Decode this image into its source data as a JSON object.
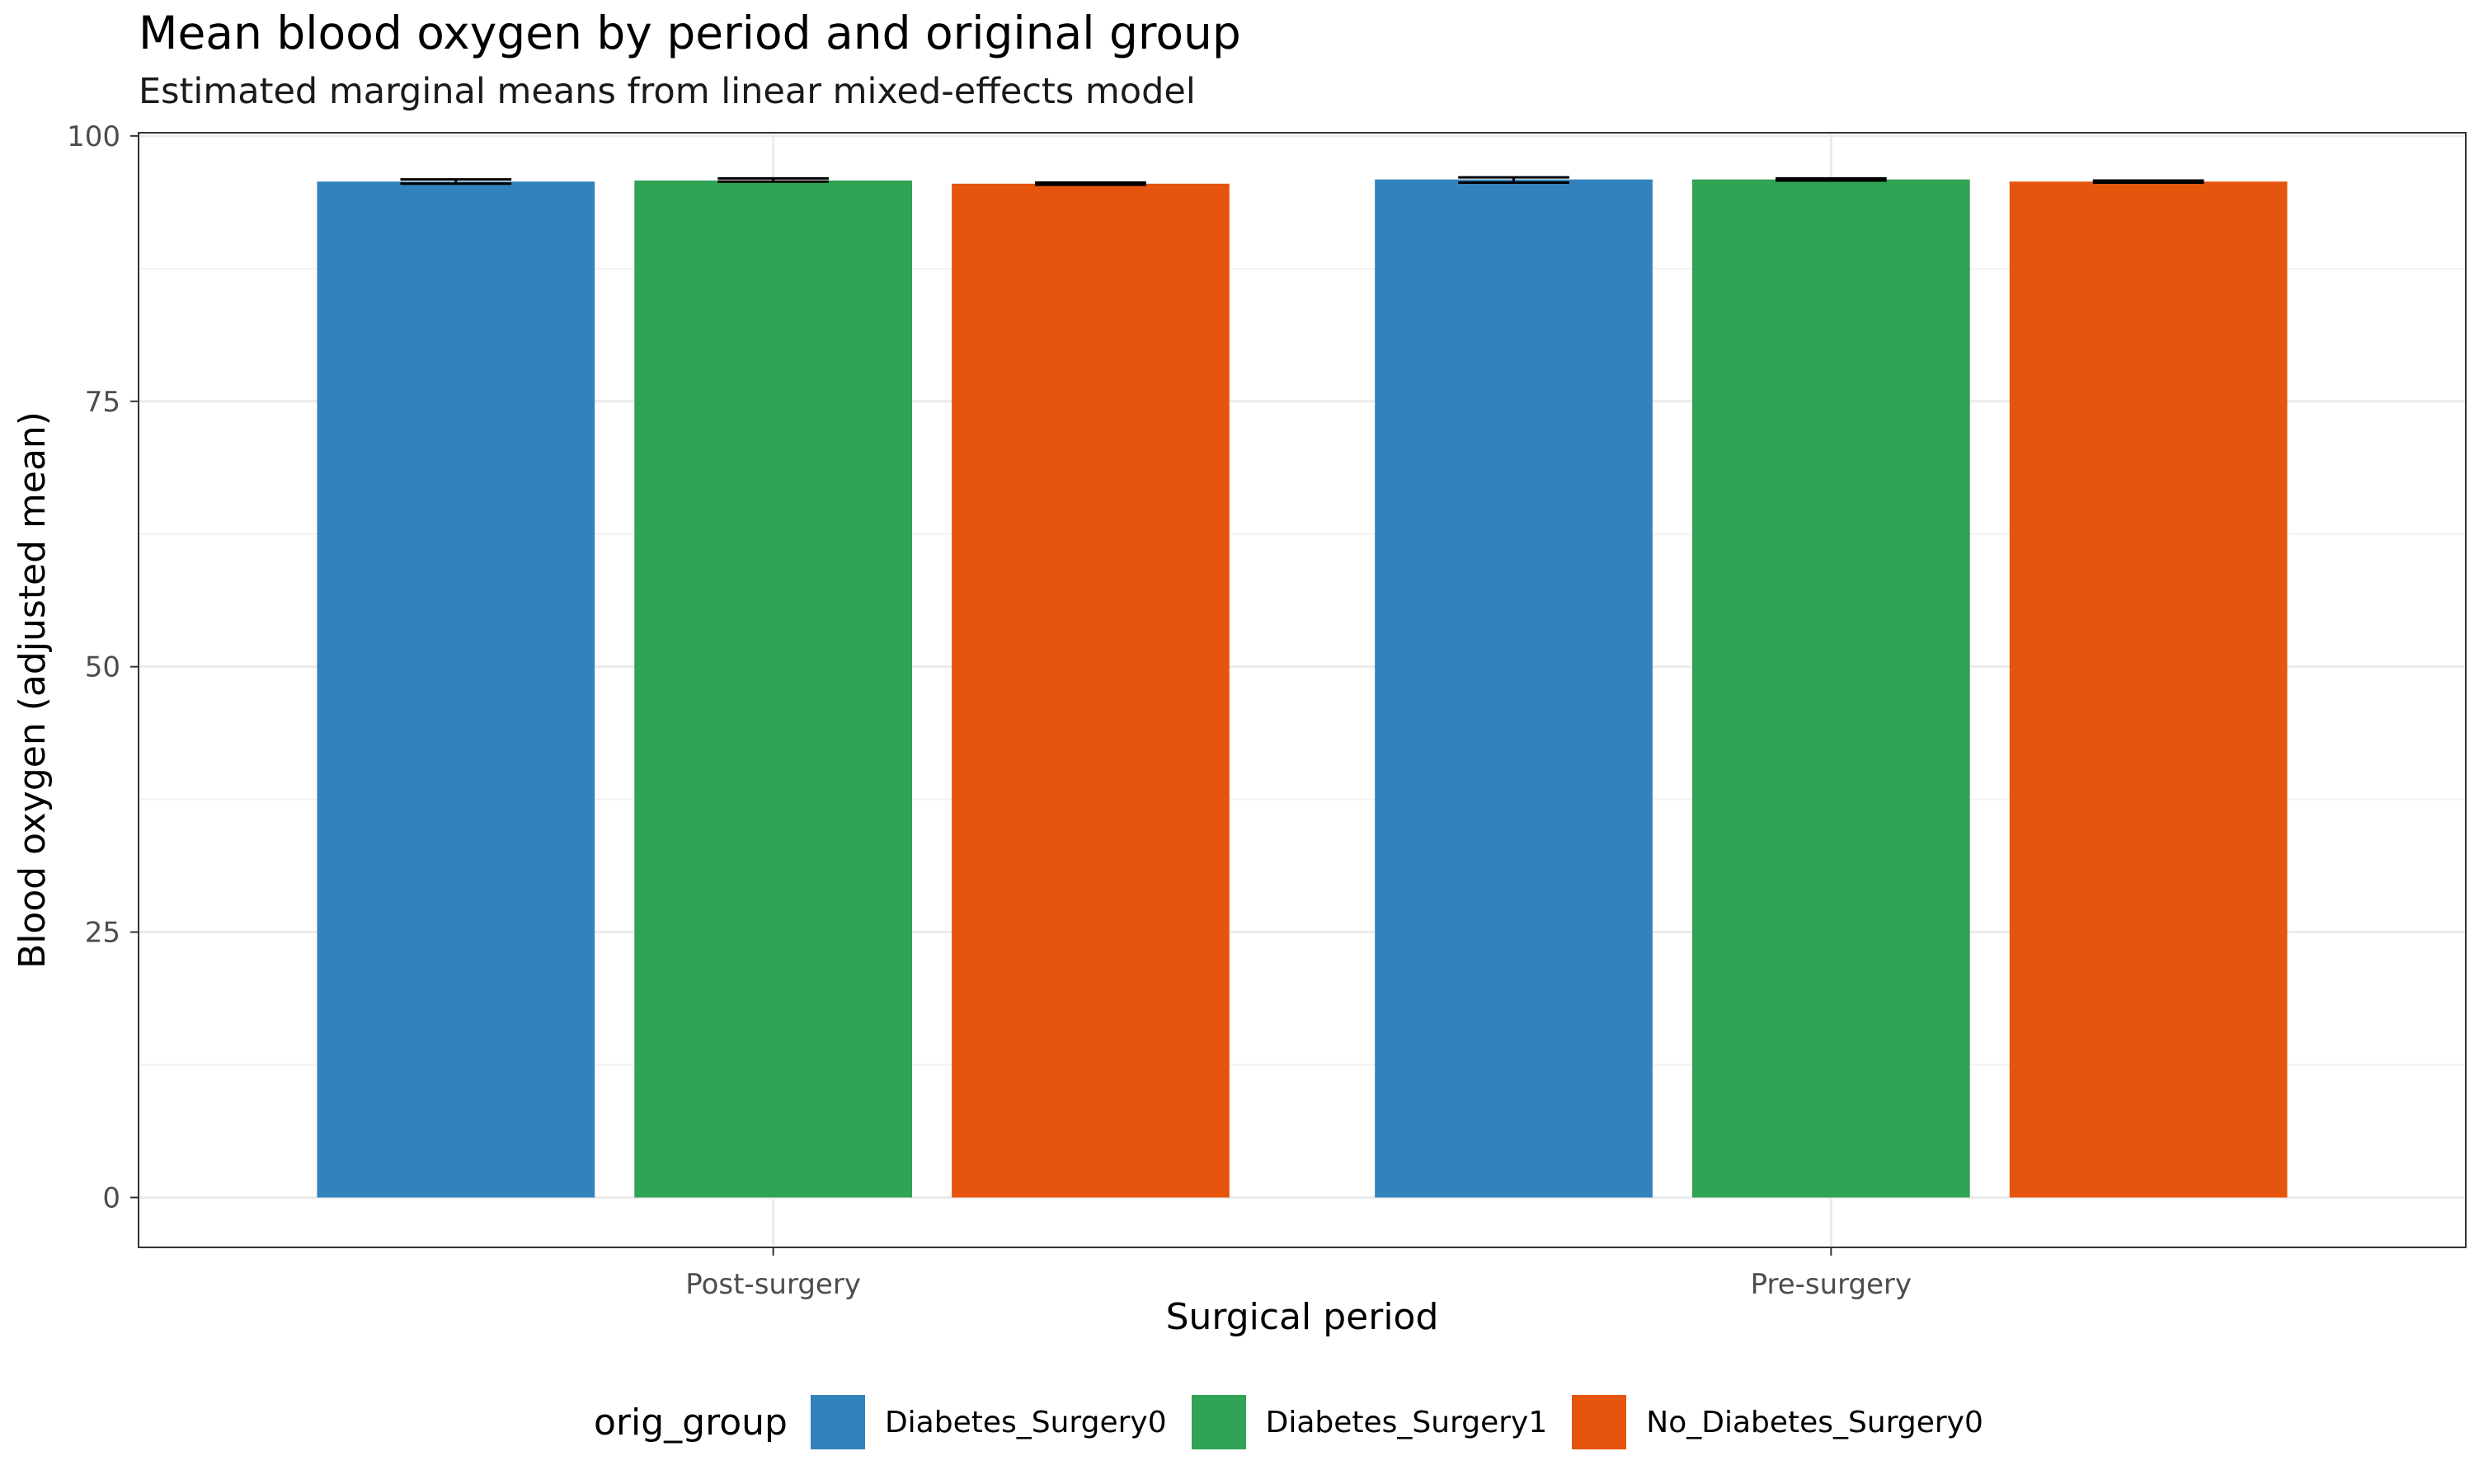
{
  "chart_data": {
    "type": "bar",
    "title": "Mean blood oxygen by period and original group",
    "subtitle": "Estimated marginal means from linear mixed-effects model",
    "xlabel": "Surgical period",
    "ylabel": "Blood oxygen (adjusted mean)",
    "categories": [
      "Post-surgery",
      "Pre-surgery"
    ],
    "ylim": [
      -4.7,
      100.3
    ],
    "yticks": [
      0,
      25,
      50,
      75,
      100
    ],
    "grid": true,
    "legend": {
      "title": "orig_group",
      "position": "bottom"
    },
    "series": [
      {
        "name": "Diabetes_Surgery0",
        "color": "#3282BD",
        "values": [
          95.7,
          95.9
        ],
        "error_low": [
          95.5,
          95.6
        ],
        "error_high": [
          95.9,
          96.1
        ]
      },
      {
        "name": "Diabetes_Surgery1",
        "color": "#31A354",
        "values": [
          95.8,
          95.9
        ],
        "error_low": [
          95.7,
          95.8
        ],
        "error_high": [
          96.0,
          96.0
        ]
      },
      {
        "name": "No_Diabetes_Surgery0",
        "color": "#E6550D",
        "values": [
          95.5,
          95.7
        ],
        "error_low": [
          95.4,
          95.6
        ],
        "error_high": [
          95.6,
          95.8
        ]
      }
    ]
  }
}
